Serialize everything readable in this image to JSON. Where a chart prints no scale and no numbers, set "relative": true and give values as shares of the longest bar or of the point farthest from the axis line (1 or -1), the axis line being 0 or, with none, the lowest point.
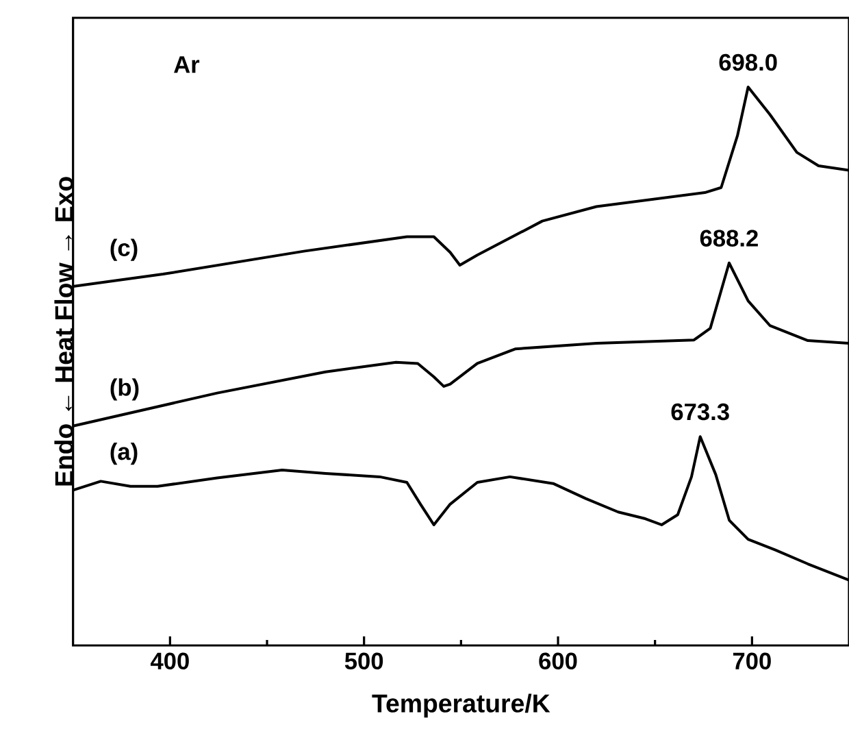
{
  "chart_data": {
    "type": "line",
    "xlabel": "Temperature/K",
    "ylabel": "Endo ← Heat Flow → Exo",
    "relative": true,
    "xlim": [
      350,
      750
    ],
    "xticks": [
      400,
      500,
      600,
      700
    ],
    "annotations": [
      "Ar",
      {
        "text": "698.0",
        "x": 698,
        "y": 1.0
      },
      {
        "text": "688.2",
        "x": 688.2,
        "y": 0.685
      },
      {
        "text": "673.3",
        "x": 673.3,
        "y": 0.374
      }
    ],
    "series": [
      {
        "name": "(a)",
        "color": "#000000",
        "x": [
          350,
          364.3,
          379.6,
          393.6,
          424.3,
          457.8,
          480.2,
          508.1,
          522.1,
          529.1,
          536.0,
          544.4,
          558.4,
          575.2,
          597.5,
          614.3,
          631.0,
          645.0,
          653.4,
          661.7,
          668.8,
          673.3,
          681.3,
          688.3,
          698.0,
          712.0,
          728.8,
          750
        ],
        "values": [
          0.278,
          0.294,
          0.285,
          0.285,
          0.3,
          0.314,
          0.308,
          0.302,
          0.292,
          0.253,
          0.216,
          0.253,
          0.292,
          0.302,
          0.29,
          0.263,
          0.239,
          0.227,
          0.216,
          0.234,
          0.302,
          0.374,
          0.306,
          0.224,
          0.19,
          0.171,
          0.146,
          0.117
        ]
      },
      {
        "name": "(b)",
        "color": "#000000",
        "x": [
          350,
          424.3,
          480.2,
          516.5,
          527.7,
          536.0,
          541.1,
          544.4,
          558.4,
          577.9,
          619.8,
          670.1,
          678.5,
          688.2,
          698.0,
          709.2,
          728.8,
          750
        ],
        "values": [
          0.393,
          0.452,
          0.49,
          0.507,
          0.505,
          0.481,
          0.464,
          0.468,
          0.505,
          0.531,
          0.541,
          0.547,
          0.568,
          0.685,
          0.617,
          0.573,
          0.546,
          0.541
        ]
      },
      {
        "name": "(c)",
        "color": "#000000",
        "x": [
          350,
          396.4,
          469.0,
          522.1,
          536.0,
          544.4,
          549.4,
          558.4,
          591.9,
          619.8,
          675.7,
          684.1,
          692.5,
          698.0,
          709.2,
          723.1,
          734.3,
          750
        ],
        "values": [
          0.643,
          0.665,
          0.706,
          0.732,
          0.732,
          0.704,
          0.681,
          0.699,
          0.76,
          0.786,
          0.811,
          0.82,
          0.913,
          1.0,
          0.951,
          0.883,
          0.859,
          0.851
        ]
      }
    ]
  }
}
